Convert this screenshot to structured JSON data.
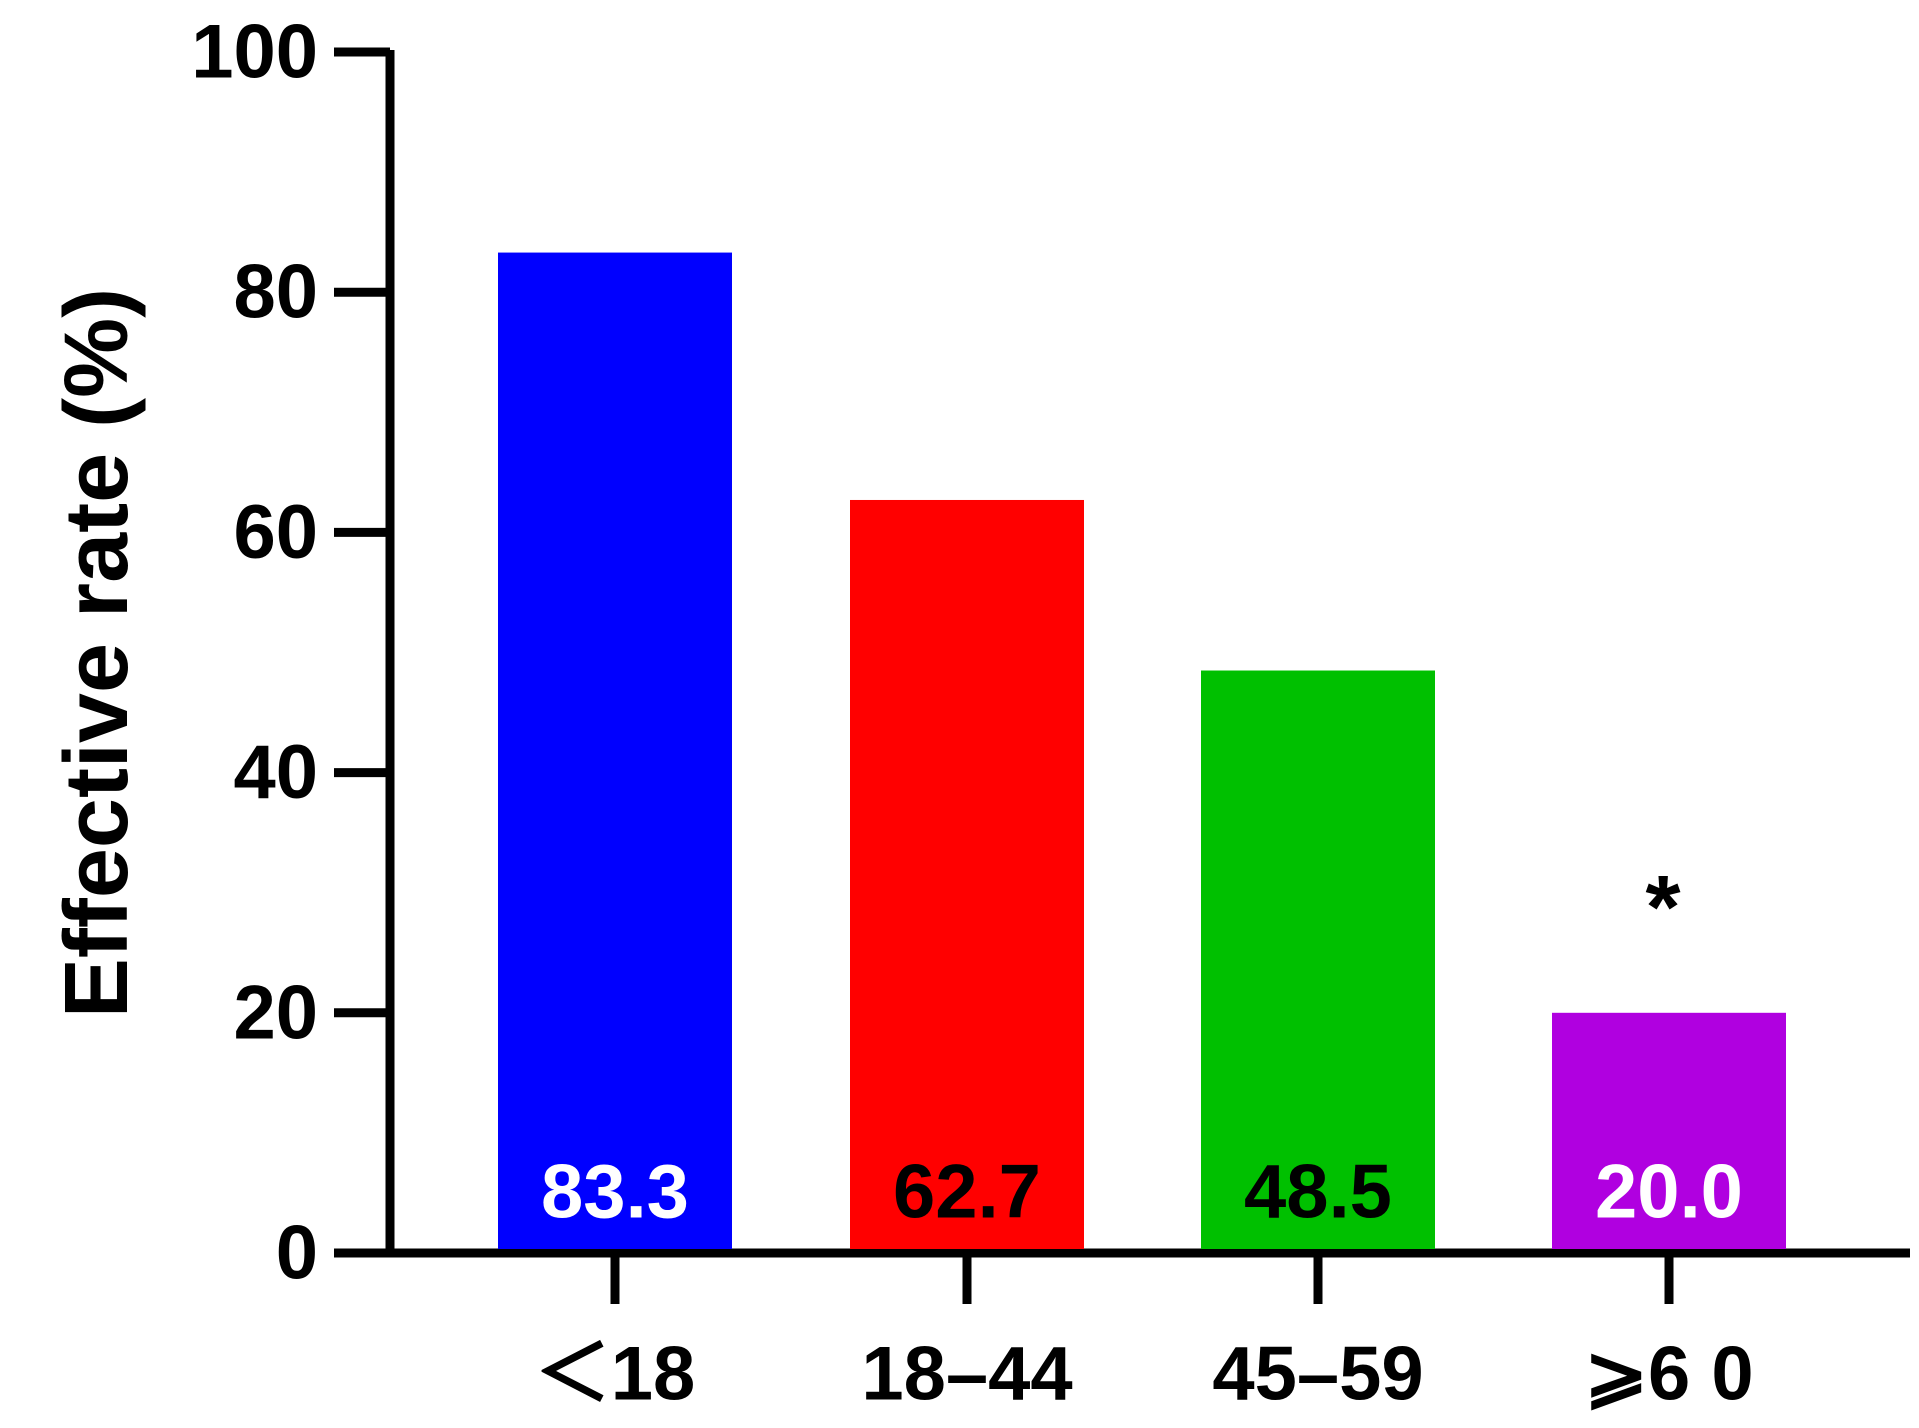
{
  "chart_data": {
    "type": "bar",
    "title": "",
    "xlabel": "",
    "ylabel": "Effective rate (%)",
    "ylim": [
      0,
      100
    ],
    "yticks": [
      "0",
      "20",
      "40",
      "60",
      "80",
      "100"
    ],
    "categories": [
      "＜18",
      "18–44",
      "45–59",
      "⩾6 0"
    ],
    "values": [
      83.3,
      62.7,
      48.5,
      20.0
    ],
    "value_labels": [
      "83.3",
      "62.7",
      "48.5",
      "20.0"
    ],
    "colors": [
      "#0000ff",
      "#ff0000",
      "#00c000",
      "#b000e0"
    ],
    "label_colors": [
      "#ffffff",
      "#000000",
      "#000000",
      "#ffffff"
    ],
    "annotations": [
      {
        "category_index": 3,
        "text": "*"
      }
    ],
    "grid": false,
    "legend": "none"
  }
}
